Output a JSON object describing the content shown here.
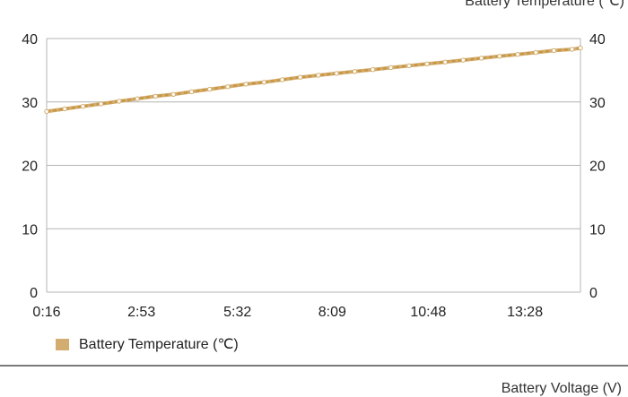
{
  "charts": {
    "temperature_title": "Battery Temperature (℃)",
    "voltage_title": "Battery Voltage (V)"
  },
  "colors": {
    "series": "#d2ad6f",
    "series_dash": "#c89540",
    "grid": "#b4b4b4"
  },
  "chart_data": [
    {
      "type": "line",
      "title": "Battery Temperature (℃)",
      "xlabel": "",
      "ylabel": "",
      "x_tick_labels": [
        "0:16",
        "2:53",
        "5:32",
        "8:09",
        "10:48",
        "13:28"
      ],
      "x_tick_minutes": [
        0.267,
        2.883,
        5.533,
        8.15,
        10.8,
        13.467
      ],
      "ylim": [
        0,
        40
      ],
      "y_ticks": [
        "0",
        "10",
        "20",
        "30",
        "40"
      ],
      "y_ticks_right": [
        "0",
        "10",
        "20",
        "30",
        "40"
      ],
      "grid": true,
      "legend": "bottom-left",
      "series": [
        {
          "name": "Battery Temperature (℃)",
          "color": "#d2ad6f",
          "x_minutes": [
            0.267,
            0.767,
            1.267,
            1.767,
            2.267,
            2.767,
            3.267,
            3.767,
            4.267,
            4.767,
            5.267,
            5.767,
            6.267,
            6.767,
            7.267,
            7.767,
            8.267,
            8.767,
            9.267,
            9.767,
            10.267,
            10.767,
            11.267,
            11.767,
            12.267,
            12.767,
            13.267,
            13.767,
            14.267,
            14.767,
            15.0
          ],
          "values": [
            28.5,
            28.9,
            29.3,
            29.7,
            30.1,
            30.5,
            30.9,
            31.2,
            31.6,
            32.0,
            32.4,
            32.8,
            33.1,
            33.5,
            33.9,
            34.2,
            34.5,
            34.8,
            35.1,
            35.4,
            35.7,
            36.0,
            36.3,
            36.6,
            36.9,
            37.2,
            37.5,
            37.8,
            38.1,
            38.3,
            38.5
          ]
        }
      ]
    },
    {
      "type": "line",
      "title": "Battery Voltage (V)",
      "series": []
    }
  ]
}
